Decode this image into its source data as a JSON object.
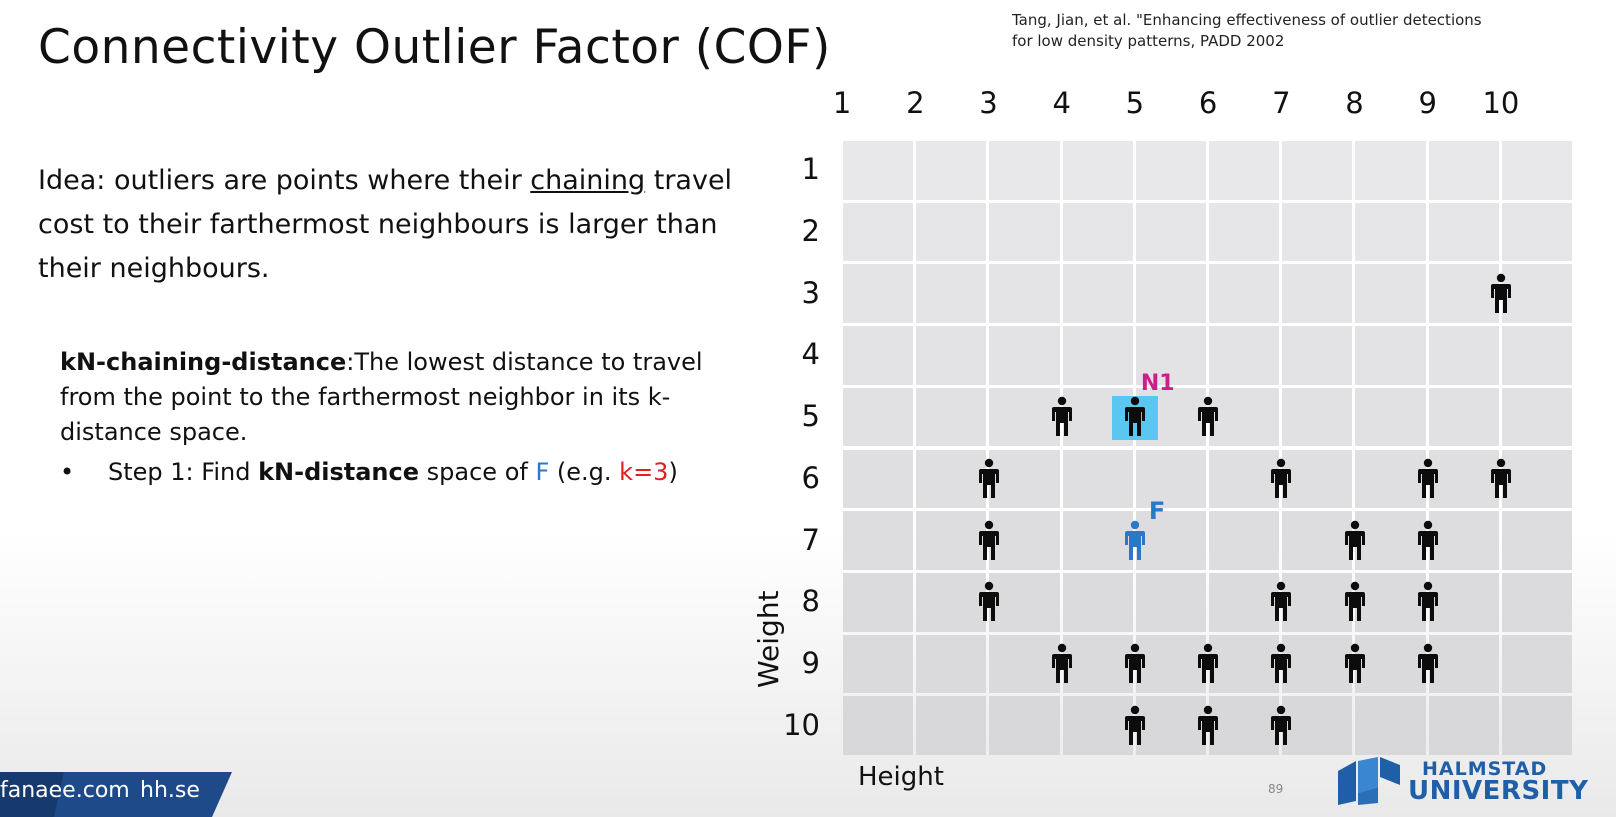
{
  "slide": {
    "title": "Connectivity Outlier Factor (COF)",
    "citation_line1": "Tang, Jian, et al. \"Enhancing effectiveness of outlier detections",
    "citation_line2": "for low density patterns, PADD 2002",
    "idea_part1": "Idea: outliers are points where their ",
    "idea_underlined": "chaining",
    "idea_part2": " travel cost to their farthermost neighbours is larger than their neighbours.",
    "definition_term": "kN-chaining-distance",
    "definition_text": ":The lowest distance to travel from the point to the farthermost neighbor in its k-distance space.",
    "bullet": "•",
    "step_prefix": "Step 1: Find ",
    "step_bold": "kN-distance",
    "step_middle": " space of ",
    "step_f": "F",
    "step_eg": " (e.g. ",
    "step_k": "k=3",
    "step_close": ")"
  },
  "chart_data": {
    "type": "scatter",
    "xlabel": "Height",
    "ylabel": "Weight",
    "x_ticks": [
      "1",
      "2",
      "3",
      "4",
      "5",
      "6",
      "7",
      "8",
      "9",
      "10"
    ],
    "y_ticks": [
      "1",
      "2",
      "3",
      "4",
      "5",
      "6",
      "7",
      "8",
      "9",
      "10"
    ],
    "points": [
      {
        "x": 10,
        "y": 3
      },
      {
        "x": 4,
        "y": 5
      },
      {
        "x": 5,
        "y": 5,
        "label": "N1",
        "highlight": true
      },
      {
        "x": 6,
        "y": 5
      },
      {
        "x": 3,
        "y": 6
      },
      {
        "x": 7,
        "y": 6
      },
      {
        "x": 9,
        "y": 6
      },
      {
        "x": 10,
        "y": 6
      },
      {
        "x": 3,
        "y": 7
      },
      {
        "x": 5,
        "y": 7,
        "label": "F",
        "color": "#2a78c9"
      },
      {
        "x": 8,
        "y": 7
      },
      {
        "x": 9,
        "y": 7
      },
      {
        "x": 3,
        "y": 8
      },
      {
        "x": 7,
        "y": 8
      },
      {
        "x": 8,
        "y": 8
      },
      {
        "x": 9,
        "y": 8
      },
      {
        "x": 4,
        "y": 9
      },
      {
        "x": 5,
        "y": 9
      },
      {
        "x": 6,
        "y": 9
      },
      {
        "x": 7,
        "y": 9
      },
      {
        "x": 8,
        "y": 9
      },
      {
        "x": 9,
        "y": 9
      },
      {
        "x": 5,
        "y": 10
      },
      {
        "x": 6,
        "y": 10
      },
      {
        "x": 7,
        "y": 10
      }
    ]
  },
  "footer": {
    "site1": "fanaee",
    "site1_domain": ".com",
    "site2": "hh.se",
    "page_number": "89",
    "logo_line1": "HALMSTAD",
    "logo_line2": "UNIVERSITY"
  },
  "colors": {
    "footer_band": "#1f4a8a",
    "footer_band_dark": "#173a6e",
    "logo_blue": "#1e5fa8",
    "grid_cell": "#e5e5e8",
    "highlight": "#5bc6ef",
    "n_label": "#cc1f8a",
    "f_label": "#2a78c9",
    "k_label": "#e02020"
  }
}
